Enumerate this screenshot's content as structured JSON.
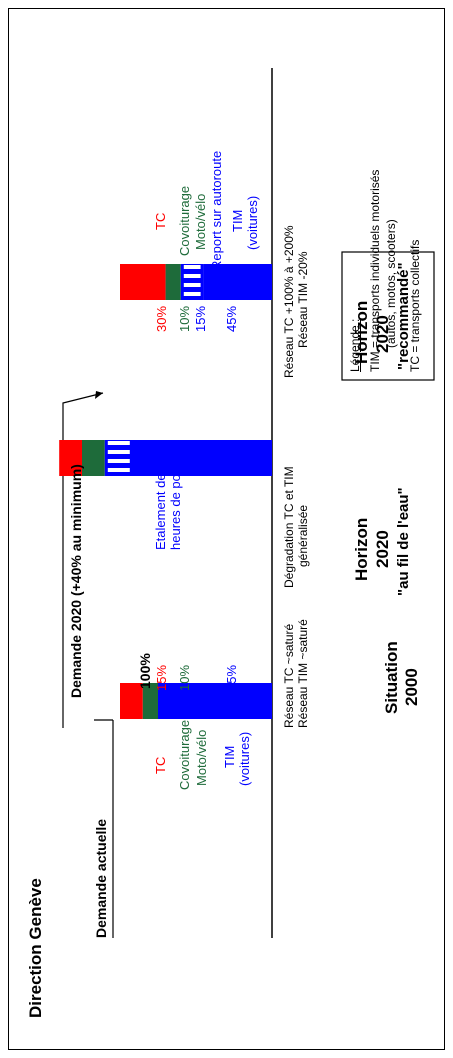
{
  "title": "Direction Genève",
  "demande_actuelle": "Demande actuelle",
  "demande_2020": "Demande 2020 (+40% au minimum)",
  "legend_box": {
    "heading": "Légende :",
    "lines": [
      "TIM = transports individuels motorisés",
      "(autos, motos, scooters)",
      "TC = transports collectifs"
    ]
  },
  "left_labels": {
    "tc": "TC",
    "covoiturage": "Covoiturage",
    "moto": "Moto/vélo",
    "tim": "TIM",
    "voitures": "(voitures)"
  },
  "right_labels": {
    "tc": "TC",
    "covoiturage": "Covoiturage",
    "moto": "Moto/vélo",
    "report": "Report sur autoroute",
    "tim": "TIM",
    "voitures": "(voitures)"
  },
  "bar_total_label": "100%",
  "etalement": [
    "Etalement des",
    "heures de pointe"
  ],
  "network": {
    "s2000": [
      "Réseau TC ~saturé",
      "Réseau TIM ~saturé"
    ],
    "fil": [
      "Dégradation TC et TIM",
      "généralisée"
    ],
    "rec": [
      "Réseau TC +100% à +200%",
      "Réseau TIM -20%"
    ]
  },
  "scenarios": {
    "s2000": [
      "Situation",
      "2000"
    ],
    "fil": [
      "Horizon",
      "2020",
      "\"au fil de l'eau\""
    ],
    "rec": [
      "Horizon",
      "2020",
      "\"recommandé\""
    ]
  },
  "colors": {
    "tc": "#ff0000",
    "covoit": "#1e6b3a",
    "tim": "#0000ff",
    "report": "#0000ff",
    "axis": "#000000"
  },
  "chart_data": {
    "type": "bar",
    "orientation": "stacked",
    "categories": [
      "Situation 2000",
      "Horizon 2020 \"au fil de l'eau\"",
      "Horizon 2020 \"recommandé\""
    ],
    "series": [
      {
        "name": "TC",
        "values": [
          15,
          15,
          30
        ],
        "labels": [
          "15%",
          "",
          "30%"
        ]
      },
      {
        "name": "Covoiturage Moto/vélo",
        "values": [
          10,
          15,
          10
        ],
        "labels": [
          "10%",
          "",
          "10%"
        ]
      },
      {
        "name": "Report sur autoroute",
        "values": [
          0,
          0,
          15
        ],
        "labels": [
          "",
          "",
          "15%"
        ]
      },
      {
        "name": "TIM (voitures)",
        "values": [
          75,
          110,
          45
        ],
        "labels": [
          "75%",
          "",
          "45%"
        ]
      }
    ],
    "ylim": [
      0,
      140
    ]
  }
}
